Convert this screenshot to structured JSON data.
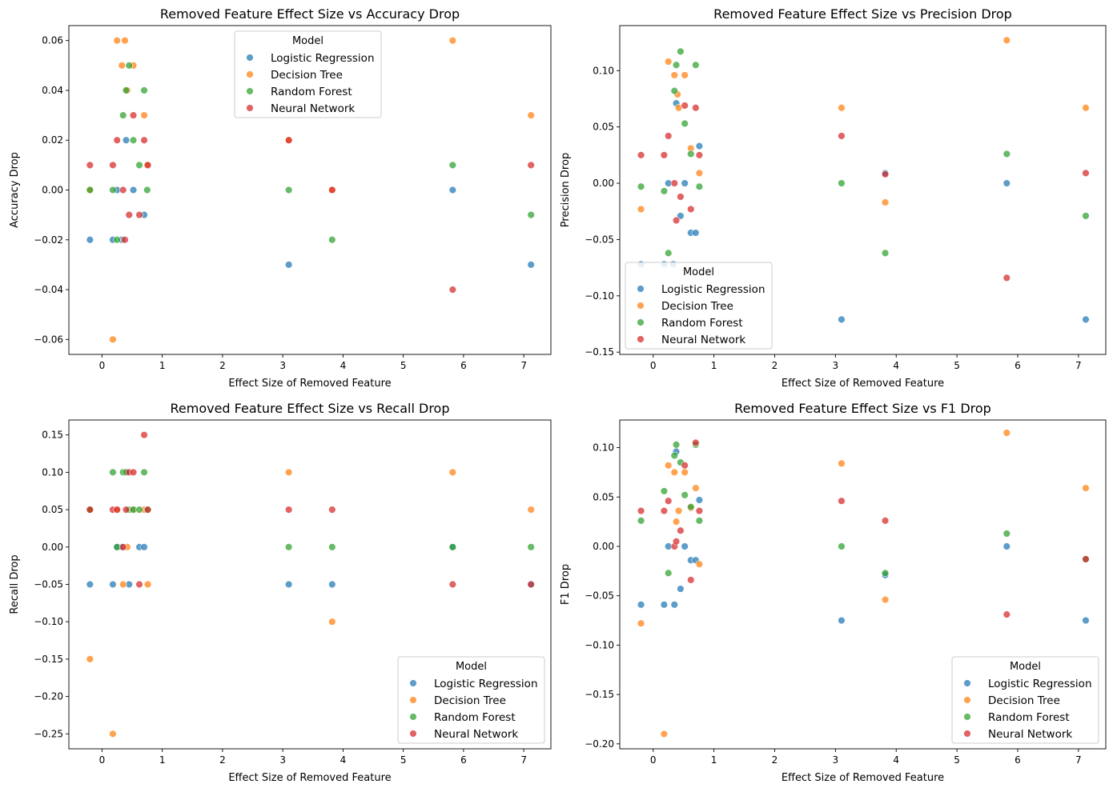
{
  "colors": {
    "Logistic Regression": "#1f77b4",
    "Decision Tree": "#ff7f0e",
    "Random Forest": "#2ca02c",
    "Neural Network": "#d62728"
  },
  "chart_data": [
    {
      "type": "scatter",
      "title": "Removed Feature Effect Size vs Accuracy Drop",
      "xlabel": "Effect Size of Removed Feature",
      "ylabel": "Accuracy Drop",
      "xlim": [
        -0.55,
        7.45
      ],
      "ylim": [
        -0.066,
        0.066
      ],
      "xticks": [
        0,
        1,
        2,
        3,
        4,
        5,
        6,
        7
      ],
      "yticks": [
        -0.06,
        -0.04,
        -0.02,
        0.0,
        0.02,
        0.04,
        0.06
      ],
      "ytick_labels": [
        "−0.06",
        "−0.04",
        "−0.02",
        "0.00",
        "0.02",
        "0.04",
        "0.06"
      ],
      "legend": {
        "title": "Model",
        "position": "upper-center",
        "entries": [
          "Logistic Regression",
          "Decision Tree",
          "Random Forest",
          "Neural Network"
        ]
      },
      "series": [
        {
          "name": "Logistic Regression",
          "x": [
            -0.2,
            0.18,
            0.25,
            0.33,
            0.4,
            0.52,
            0.7,
            3.1,
            5.82,
            7.12
          ],
          "y": [
            -0.02,
            -0.02,
            0.0,
            -0.02,
            0.02,
            0.0,
            -0.01,
            -0.03,
            0.0,
            -0.03
          ]
        },
        {
          "name": "Decision Tree",
          "x": [
            -0.2,
            0.18,
            0.25,
            0.33,
            0.38,
            0.42,
            0.52,
            0.7,
            0.75,
            3.1,
            3.82,
            5.82,
            7.12
          ],
          "y": [
            0.0,
            -0.06,
            0.06,
            0.05,
            0.06,
            0.04,
            0.05,
            0.03,
            0.01,
            0.02,
            0.0,
            0.06,
            0.03
          ]
        },
        {
          "name": "Random Forest",
          "x": [
            -0.2,
            0.18,
            0.25,
            0.35,
            0.4,
            0.45,
            0.52,
            0.62,
            0.7,
            0.75,
            3.1,
            3.82,
            5.82,
            7.12
          ],
          "y": [
            0.0,
            0.0,
            -0.02,
            0.03,
            0.04,
            0.05,
            0.02,
            0.01,
            0.04,
            0.0,
            0.0,
            -0.02,
            0.01,
            -0.01
          ]
        },
        {
          "name": "Neural Network",
          "x": [
            -0.2,
            0.18,
            0.25,
            0.35,
            0.38,
            0.45,
            0.52,
            0.62,
            0.7,
            0.76,
            3.1,
            3.82,
            5.82,
            7.12
          ],
          "y": [
            0.01,
            0.01,
            0.02,
            0.0,
            -0.02,
            -0.01,
            0.03,
            -0.01,
            0.02,
            0.01,
            0.02,
            0.0,
            -0.04,
            0.01
          ]
        }
      ]
    },
    {
      "type": "scatter",
      "title": "Removed Feature Effect Size vs Precision Drop",
      "xlabel": "Effect Size of Removed Feature",
      "ylabel": "Precision Drop",
      "xlim": [
        -0.55,
        7.45
      ],
      "ylim": [
        -0.152,
        0.14
      ],
      "xticks": [
        0,
        1,
        2,
        3,
        4,
        5,
        6,
        7
      ],
      "yticks": [
        -0.15,
        -0.1,
        -0.05,
        0.0,
        0.05,
        0.1
      ],
      "ytick_labels": [
        "−0.15",
        "−0.10",
        "−0.05",
        "0.00",
        "0.05",
        "0.10"
      ],
      "legend": {
        "title": "Model",
        "position": "lower-left",
        "entries": [
          "Logistic Regression",
          "Decision Tree",
          "Random Forest",
          "Neural Network"
        ]
      },
      "series": [
        {
          "name": "Logistic Regression",
          "x": [
            -0.2,
            0.18,
            0.25,
            0.33,
            0.38,
            0.45,
            0.52,
            0.62,
            0.7,
            0.76,
            3.1,
            3.82,
            5.82,
            7.12
          ],
          "y": [
            -0.072,
            -0.072,
            0.0,
            -0.072,
            0.071,
            -0.029,
            0.0,
            -0.044,
            -0.044,
            0.033,
            -0.121,
            0.009,
            0.0,
            -0.121
          ]
        },
        {
          "name": "Decision Tree",
          "x": [
            -0.2,
            0.25,
            0.35,
            0.4,
            0.42,
            0.52,
            0.62,
            0.76,
            3.1,
            3.82,
            5.82,
            7.12
          ],
          "y": [
            -0.023,
            0.108,
            0.096,
            0.079,
            0.067,
            0.096,
            0.031,
            0.009,
            0.067,
            -0.017,
            0.127,
            0.067
          ]
        },
        {
          "name": "Random Forest",
          "x": [
            -0.2,
            0.18,
            0.25,
            0.35,
            0.38,
            0.45,
            0.52,
            0.62,
            0.7,
            0.76,
            3.1,
            3.82,
            5.82,
            7.12
          ],
          "y": [
            -0.003,
            -0.007,
            -0.062,
            0.082,
            0.105,
            0.117,
            0.053,
            0.026,
            0.105,
            -0.003,
            0.0,
            -0.062,
            0.026,
            -0.029
          ]
        },
        {
          "name": "Neural Network",
          "x": [
            -0.2,
            0.18,
            0.25,
            0.35,
            0.38,
            0.45,
            0.52,
            0.62,
            0.7,
            0.76,
            3.1,
            3.82,
            5.82,
            7.12
          ],
          "y": [
            0.025,
            0.025,
            0.042,
            0.0,
            -0.033,
            -0.012,
            0.069,
            -0.023,
            0.067,
            0.025,
            0.042,
            0.008,
            -0.084,
            0.009
          ]
        }
      ]
    },
    {
      "type": "scatter",
      "title": "Removed Feature Effect Size vs Recall Drop",
      "xlabel": "Effect Size of Removed Feature",
      "ylabel": "Recall Drop",
      "xlim": [
        -0.55,
        7.45
      ],
      "ylim": [
        -0.27,
        0.17
      ],
      "xticks": [
        0,
        1,
        2,
        3,
        4,
        5,
        6,
        7
      ],
      "yticks": [
        -0.25,
        -0.2,
        -0.15,
        -0.1,
        -0.05,
        0.0,
        0.05,
        0.1,
        0.15
      ],
      "ytick_labels": [
        "−0.25",
        "−0.20",
        "−0.15",
        "−0.10",
        "−0.05",
        "0.00",
        "0.05",
        "0.10",
        "0.15"
      ],
      "legend": {
        "title": "Model",
        "position": "lower-right",
        "entries": [
          "Logistic Regression",
          "Decision Tree",
          "Random Forest",
          "Neural Network"
        ]
      },
      "series": [
        {
          "name": "Logistic Regression",
          "x": [
            -0.2,
            0.18,
            0.25,
            0.33,
            0.4,
            0.45,
            0.62,
            0.7,
            3.1,
            3.82,
            5.82,
            7.12
          ],
          "y": [
            -0.05,
            -0.05,
            0.0,
            0.0,
            0.1,
            -0.05,
            0.0,
            0.0,
            -0.05,
            -0.05,
            0.0,
            -0.05
          ]
        },
        {
          "name": "Decision Tree",
          "x": [
            -0.2,
            -0.2,
            0.18,
            0.25,
            0.35,
            0.42,
            0.52,
            0.7,
            0.76,
            3.1,
            3.82,
            5.82,
            7.12
          ],
          "y": [
            -0.15,
            0.05,
            -0.25,
            0.05,
            -0.05,
            0.0,
            0.05,
            0.05,
            -0.05,
            0.1,
            -0.1,
            0.1,
            0.05
          ]
        },
        {
          "name": "Random Forest",
          "x": [
            -0.2,
            0.18,
            0.25,
            0.35,
            0.4,
            0.45,
            0.52,
            0.62,
            0.7,
            0.76,
            3.1,
            3.82,
            5.82,
            7.12
          ],
          "y": [
            0.05,
            0.1,
            0.0,
            0.1,
            0.1,
            0.05,
            0.05,
            0.05,
            0.1,
            0.05,
            0.0,
            0.0,
            0.0,
            0.0
          ]
        },
        {
          "name": "Neural Network",
          "x": [
            -0.2,
            0.18,
            0.25,
            0.35,
            0.4,
            0.45,
            0.52,
            0.62,
            0.7,
            0.76,
            3.1,
            3.82,
            5.82,
            7.12
          ],
          "y": [
            0.05,
            0.05,
            0.05,
            0.0,
            0.05,
            0.1,
            0.1,
            -0.05,
            0.15,
            0.05,
            0.05,
            0.05,
            -0.05,
            -0.05
          ]
        }
      ]
    },
    {
      "type": "scatter",
      "title": "Removed Feature Effect Size vs F1 Drop",
      "xlabel": "Effect Size of Removed Feature",
      "ylabel": "F1 Drop",
      "xlim": [
        -0.55,
        7.45
      ],
      "ylim": [
        -0.205,
        0.128
      ],
      "xticks": [
        0,
        1,
        2,
        3,
        4,
        5,
        6,
        7
      ],
      "yticks": [
        -0.2,
        -0.15,
        -0.1,
        -0.05,
        0.0,
        0.05,
        0.1
      ],
      "ytick_labels": [
        "−0.20",
        "−0.15",
        "−0.10",
        "−0.05",
        "0.00",
        "0.05",
        "0.10"
      ],
      "legend": {
        "title": "Model",
        "position": "lower-right",
        "entries": [
          "Logistic Regression",
          "Decision Tree",
          "Random Forest",
          "Neural Network"
        ]
      },
      "series": [
        {
          "name": "Logistic Regression",
          "x": [
            -0.2,
            0.18,
            0.25,
            0.35,
            0.38,
            0.45,
            0.52,
            0.62,
            0.7,
            0.76,
            3.1,
            3.82,
            5.82,
            7.12
          ],
          "y": [
            -0.059,
            -0.059,
            0.0,
            -0.059,
            0.096,
            -0.043,
            0.0,
            -0.014,
            -0.014,
            0.047,
            -0.075,
            -0.029,
            0.0,
            -0.075
          ]
        },
        {
          "name": "Decision Tree",
          "x": [
            -0.2,
            0.18,
            0.25,
            0.35,
            0.38,
            0.42,
            0.52,
            0.62,
            0.7,
            0.76,
            3.1,
            3.82,
            5.82,
            7.12
          ],
          "y": [
            -0.078,
            -0.19,
            0.082,
            0.075,
            0.025,
            0.036,
            0.075,
            0.039,
            0.059,
            -0.018,
            0.084,
            -0.054,
            0.115,
            0.059
          ]
        },
        {
          "name": "Random Forest",
          "x": [
            -0.2,
            0.18,
            0.25,
            0.35,
            0.38,
            0.45,
            0.52,
            0.62,
            0.7,
            0.76,
            3.1,
            3.82,
            5.82,
            7.12
          ],
          "y": [
            0.026,
            0.056,
            -0.027,
            0.092,
            0.103,
            0.085,
            0.052,
            0.04,
            0.103,
            0.026,
            0.0,
            -0.027,
            0.013,
            -0.013
          ]
        },
        {
          "name": "Neural Network",
          "x": [
            -0.2,
            0.18,
            0.25,
            0.35,
            0.38,
            0.45,
            0.52,
            0.62,
            0.7,
            0.76,
            3.1,
            3.82,
            5.82,
            7.12
          ],
          "y": [
            0.036,
            0.036,
            0.046,
            0.0,
            0.005,
            0.016,
            0.082,
            -0.034,
            0.105,
            0.036,
            0.046,
            0.026,
            -0.069,
            -0.013
          ]
        }
      ]
    }
  ]
}
